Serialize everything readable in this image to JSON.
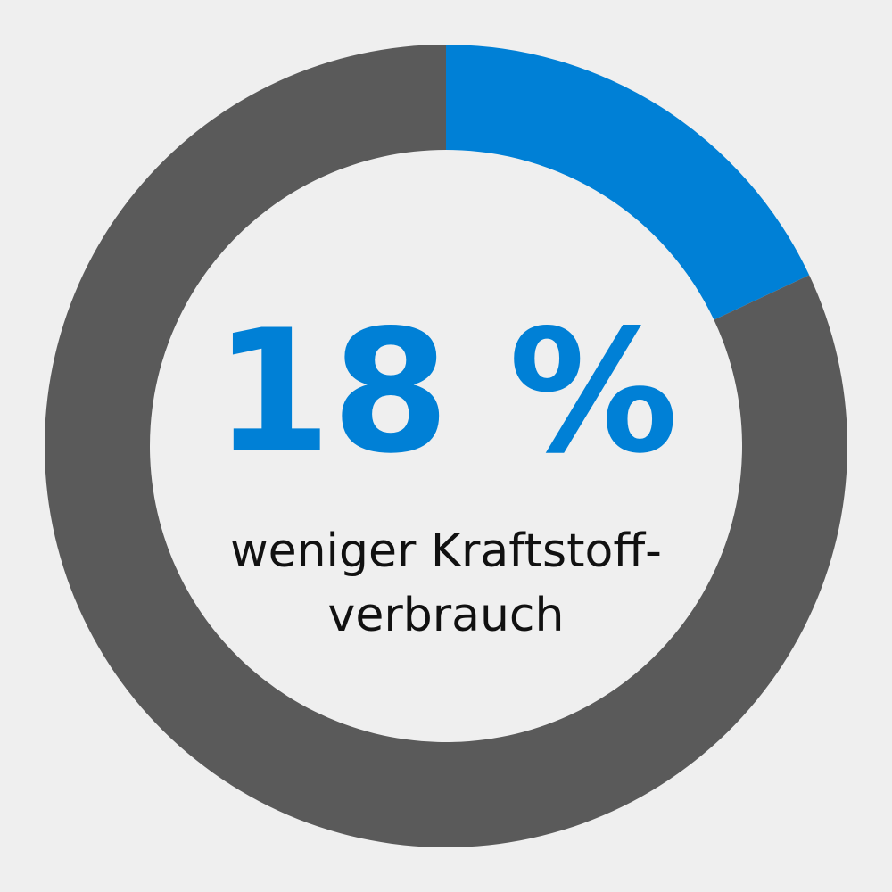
{
  "chart_data": {
    "type": "donut",
    "values": [
      18,
      82
    ],
    "value_labels": [
      "18 %",
      null
    ],
    "colors": [
      "#0080d6",
      "#5a5a5a"
    ],
    "annotation": [
      "weniger Kraftstoff-",
      "verbrauch"
    ]
  }
}
